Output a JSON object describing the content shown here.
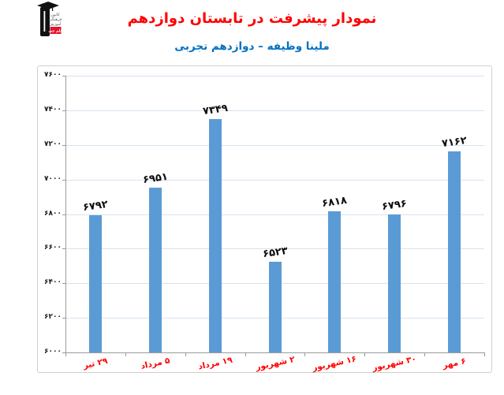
{
  "page": {
    "title": "نمودار پیشرفت در تابستان دوازدهم",
    "subtitle": "ملینا وظیفه – دوازدهم تجربی",
    "title_color": "#FF0000",
    "subtitle_color": "#0070C0"
  },
  "logo": {
    "org_line1": "کانون",
    "org_line2": "فرهنگی",
    "org_line3": "آموزش",
    "badge": "قلم چی",
    "badge_color": "#E8112D"
  },
  "chart_data": {
    "type": "bar",
    "title": "نمودار پیشرفت در تابستان دوازدهم",
    "subtitle": "ملینا وظیفه – دوازدهم تجربی",
    "categories": [
      "۲۹ تیر",
      "۵ مرداد",
      "۱۹ مرداد",
      "۲ شهریور",
      "۱۶ شهریور",
      "۳۰ شهریور",
      "۶ مهر"
    ],
    "values": [
      6792,
      6951,
      7349,
      6523,
      6818,
      6796,
      7162
    ],
    "value_labels": [
      "۶۷۹۲",
      "۶۹۵۱",
      "۷۳۴۹",
      "۶۵۲۳",
      "۶۸۱۸",
      "۶۷۹۶",
      "۷۱۶۲"
    ],
    "xlabel": "",
    "ylabel": "",
    "ylim": [
      6000,
      7600
    ],
    "ytick_step": 200,
    "ytick_labels": [
      "۶۰۰۰",
      "۶۲۰۰",
      "۶۴۰۰",
      "۶۶۰۰",
      "۶۸۰۰",
      "۷۰۰۰",
      "۷۲۰۰",
      "۷۴۰۰",
      "۷۶۰۰"
    ],
    "grid": true,
    "legend": false,
    "bar_color": "#5B9BD5",
    "gridline_color": "#D6E3F0",
    "axis_color": "#9a9a9a",
    "category_label_color": "#FF0000",
    "value_label_color": "#0d0d0d"
  }
}
